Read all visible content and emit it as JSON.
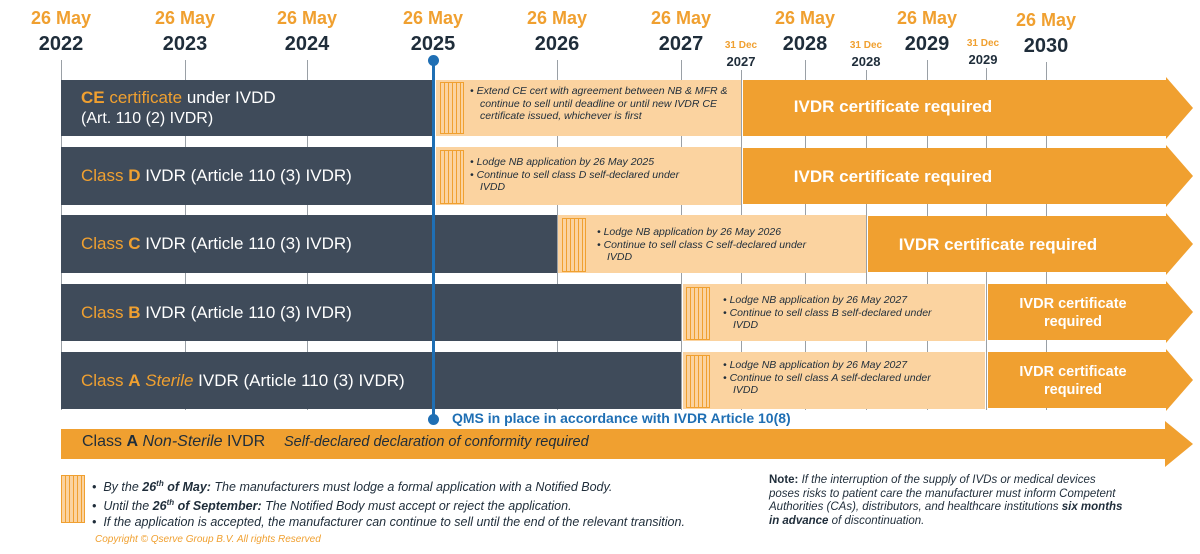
{
  "timeline": {
    "major": [
      {
        "month": "26 May",
        "year": "2022"
      },
      {
        "month": "26 May",
        "year": "2023"
      },
      {
        "month": "26 May",
        "year": "2024"
      },
      {
        "month": "26 May",
        "year": "2025"
      },
      {
        "month": "26 May",
        "year": "2026"
      },
      {
        "month": "26 May",
        "year": "2027"
      },
      {
        "month": "26 May",
        "year": "2028"
      },
      {
        "month": "26 May",
        "year": "2029"
      },
      {
        "month": "26 May",
        "year": "2030"
      }
    ],
    "dec": [
      {
        "month": "31 Dec",
        "year": "2027"
      },
      {
        "month": "31 Dec",
        "year": "2028"
      },
      {
        "month": "31 Dec",
        "year": "2029"
      }
    ]
  },
  "rows": {
    "ce": {
      "label_ce": "CE",
      "label_cert": " certificate",
      "label_rest": " under IVDD",
      "label_sub": "(Art. 110 (2) IVDR)",
      "bullet1": "Extend CE cert with agreement between NB & MFR & continue to sell until deadline or until new IVDR CE certificate issued, whichever is first",
      "arrow": "IVDR certificate required"
    },
    "d": {
      "label_class": "Class ",
      "label_letter": "D",
      "label_rest": " IVDR (Article 110 (3) IVDR)",
      "bullet1": "Lodge NB application by 26 May 2025",
      "bullet2": "Continue to sell class D self-declared under IVDD",
      "arrow": "IVDR certificate required"
    },
    "c": {
      "label_class": "Class ",
      "label_letter": "C",
      "label_rest": " IVDR (Article 110 (3) IVDR)",
      "bullet1": "Lodge NB application by 26 May 2026",
      "bullet2": "Continue to sell class C self-declared under IVDD",
      "arrow": "IVDR certificate required"
    },
    "b": {
      "label_class": "Class ",
      "label_letter": "B",
      "label_rest": " IVDR (Article 110 (3) IVDR)",
      "bullet1": "Lodge NB application by 26 May 2027",
      "bullet2": "Continue to sell class B self-declared under IVDD",
      "arrow1": "IVDR certificate",
      "arrow2": "required"
    },
    "a": {
      "label_class": "Class ",
      "label_letter": "A",
      "label_sterile": " Sterile",
      "label_rest": " IVDR (Article 110 (3) IVDR)",
      "bullet1": "Lodge NB application by 26 May 2027",
      "bullet2": "Continue to sell class A self-declared under IVDD",
      "arrow1": "IVDR certificate",
      "arrow2": "required"
    }
  },
  "qms": "QMS in place in accordance with IVDR Article 10(8)",
  "nonsterile": {
    "class": "Class ",
    "letter": "A",
    "nonsterile": " Non-Sterile",
    "ivdr": " IVDR",
    "desc": "Self-declared declaration of conformity required"
  },
  "legend": {
    "l1a": "By the ",
    "l1b": "26",
    "l1c": "th",
    "l1d": " of May:",
    "l1e": " The manufacturers must lodge a formal application with a Notified Body.",
    "l2a": "Until the ",
    "l2b": "26",
    "l2c": "th",
    "l2d": " of September:",
    "l2e": " The Notified Body must accept or reject the application.",
    "l3": "If the application is accepted, the manufacturer can continue to sell until the end of the relevant transition."
  },
  "note": {
    "label": "Note:",
    "text": " If the interruption of the supply of IVDs or medical devices poses risks to patient care the manufacturer must inform Competent Authorities (CAs), distributors, and healthcare institutions ",
    "bold": "six months in advance",
    "end": " of discontinuation."
  },
  "copyright": "Copyright © Qserve Group B.V.  All rights Reserved",
  "colors": {
    "navy": "#3f4b5a",
    "orange": "#f0a030",
    "light": "#fbd3a0",
    "blue": "#1f6fb4"
  }
}
